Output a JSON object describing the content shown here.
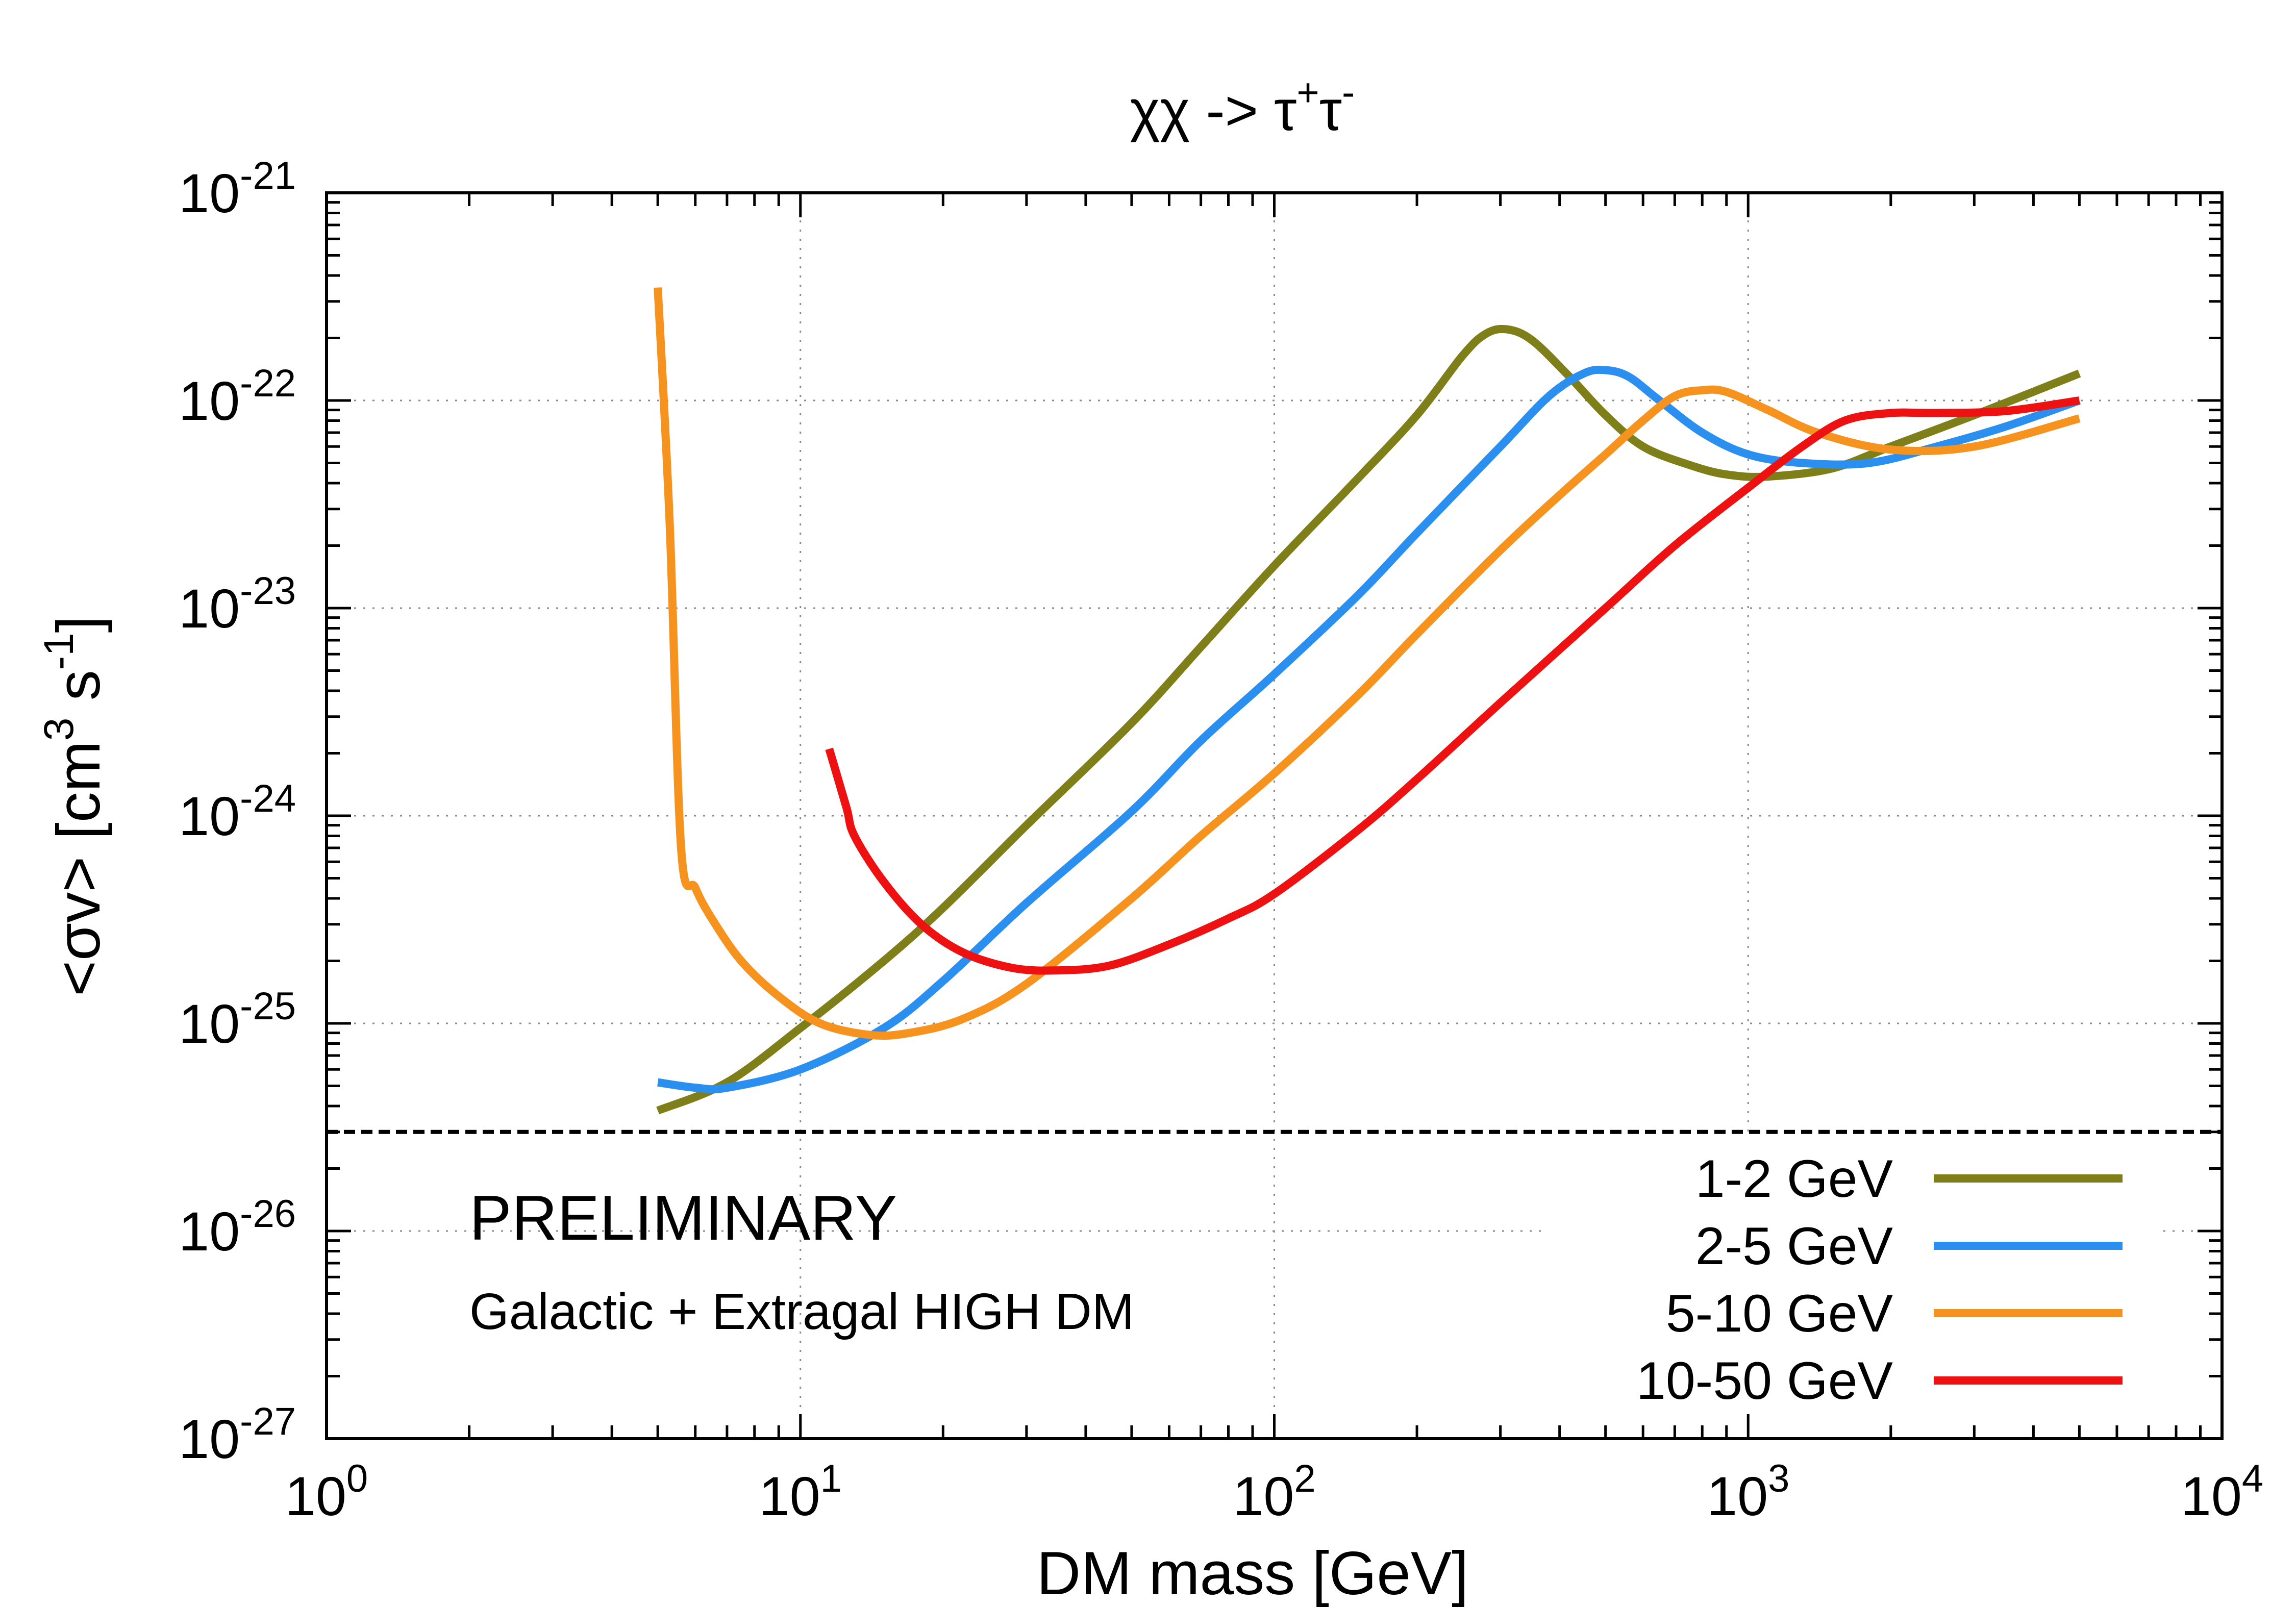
{
  "chart_data": {
    "type": "line",
    "title_parts": {
      "base": "χχ -> τ",
      "sup1": "+",
      "mid": "τ",
      "sup2": "-"
    },
    "xlabel": "DM mass [GeV]",
    "ylabel_parts": {
      "a": "<σv> [cm",
      "sup1": "3",
      "b": " s",
      "sup2": "-1",
      "c": "]"
    },
    "x_scale": "log",
    "y_scale": "log",
    "xlim": [
      1,
      10000
    ],
    "ylim": [
      1e-27,
      1e-21
    ],
    "x_ticks": [
      {
        "base": "10",
        "exp": "0",
        "value": 1
      },
      {
        "base": "10",
        "exp": "1",
        "value": 10
      },
      {
        "base": "10",
        "exp": "2",
        "value": 100
      },
      {
        "base": "10",
        "exp": "3",
        "value": 1000
      },
      {
        "base": "10",
        "exp": "4",
        "value": 10000
      }
    ],
    "y_ticks": [
      {
        "base": "10",
        "exp": "-27",
        "value": 1e-27
      },
      {
        "base": "10",
        "exp": "-26",
        "value": 1e-26
      },
      {
        "base": "10",
        "exp": "-25",
        "value": 1e-25
      },
      {
        "base": "10",
        "exp": "-24",
        "value": 1e-24
      },
      {
        "base": "10",
        "exp": "-23",
        "value": 1e-23
      },
      {
        "base": "10",
        "exp": "-22",
        "value": 1e-22
      },
      {
        "base": "10",
        "exp": "-21",
        "value": 1e-21
      }
    ],
    "grid": true,
    "legend_position": "bottom-right",
    "reference_line": {
      "y": 3e-26,
      "style": "dashed",
      "color": "#000000"
    },
    "annotations": [
      {
        "text": "PRELIMINARY",
        "color": "#ee1111"
      },
      {
        "text": "Galactic + Extragal HIGH DM",
        "color": "#000000"
      }
    ],
    "series": [
      {
        "name": "1-2 GeV",
        "color": "#7f7f1a",
        "points": [
          [
            5,
            3.8e-26
          ],
          [
            7,
            5.2e-26
          ],
          [
            10,
            9.5e-26
          ],
          [
            15,
            2e-25
          ],
          [
            20,
            3.6e-25
          ],
          [
            30,
            9e-25
          ],
          [
            50,
            2.8e-24
          ],
          [
            70,
            6.5e-24
          ],
          [
            100,
            1.6e-23
          ],
          [
            150,
            4.2e-23
          ],
          [
            200,
            8.5e-23
          ],
          [
            250,
            1.65e-22
          ],
          [
            280,
            2.1e-22
          ],
          [
            310,
            2.2e-22
          ],
          [
            350,
            1.95e-22
          ],
          [
            420,
            1.3e-22
          ],
          [
            500,
            8.5e-23
          ],
          [
            600,
            6e-23
          ],
          [
            750,
            4.9e-23
          ],
          [
            900,
            4.4e-23
          ],
          [
            1100,
            4.3e-23
          ],
          [
            1500,
            4.7e-23
          ],
          [
            2000,
            6e-23
          ],
          [
            3000,
            8.5e-23
          ],
          [
            5000,
            1.35e-22
          ]
        ]
      },
      {
        "name": "2-5 GeV",
        "color": "#2b8ff0",
        "points": [
          [
            5,
            5.2e-26
          ],
          [
            6,
            4.9e-26
          ],
          [
            7,
            4.9e-26
          ],
          [
            10,
            6e-26
          ],
          [
            15,
            9.5e-26
          ],
          [
            20,
            1.6e-25
          ],
          [
            30,
            3.8e-25
          ],
          [
            50,
            1.05e-24
          ],
          [
            70,
            2.3e-24
          ],
          [
            100,
            4.8e-24
          ],
          [
            150,
            1.15e-23
          ],
          [
            200,
            2.3e-23
          ],
          [
            300,
            6e-23
          ],
          [
            380,
            1.05e-22
          ],
          [
            450,
            1.35e-22
          ],
          [
            500,
            1.4e-22
          ],
          [
            560,
            1.3e-22
          ],
          [
            650,
            1e-22
          ],
          [
            800,
            7e-23
          ],
          [
            1000,
            5.5e-23
          ],
          [
            1300,
            5e-23
          ],
          [
            1800,
            5e-23
          ],
          [
            2500,
            6e-23
          ],
          [
            3500,
            7.5e-23
          ],
          [
            5000,
            1e-22
          ]
        ]
      },
      {
        "name": "5-10 GeV",
        "color": "#f6921e",
        "points": [
          [
            5,
            3.5e-22
          ],
          [
            5.3,
            2.5e-23
          ],
          [
            5.6,
            7e-25
          ],
          [
            6,
            4.5e-25
          ],
          [
            6.5,
            3.2e-25
          ],
          [
            7.5,
            2e-25
          ],
          [
            9,
            1.35e-25
          ],
          [
            11,
            1e-25
          ],
          [
            14,
            8.8e-26
          ],
          [
            17,
            9e-26
          ],
          [
            22,
            1.05e-25
          ],
          [
            30,
            1.55e-25
          ],
          [
            50,
            4e-25
          ],
          [
            70,
            8e-25
          ],
          [
            100,
            1.6e-24
          ],
          [
            150,
            3.8e-24
          ],
          [
            200,
            7.5e-24
          ],
          [
            300,
            1.9e-23
          ],
          [
            400,
            3.5e-23
          ],
          [
            500,
            5.5e-23
          ],
          [
            600,
            8e-23
          ],
          [
            700,
            1.05e-22
          ],
          [
            800,
            1.12e-22
          ],
          [
            900,
            1.1e-22
          ],
          [
            1100,
            9e-23
          ],
          [
            1400,
            7e-23
          ],
          [
            2000,
            5.8e-23
          ],
          [
            3000,
            6e-23
          ],
          [
            5000,
            8.2e-23
          ]
        ]
      },
      {
        "name": "10-50 GeV",
        "color": "#ee1111",
        "points": [
          [
            11.5,
            2.1e-24
          ],
          [
            12.5,
            1.1e-24
          ],
          [
            13,
            8e-25
          ],
          [
            15,
            4.8e-25
          ],
          [
            18,
            3e-25
          ],
          [
            22,
            2.2e-25
          ],
          [
            28,
            1.85e-25
          ],
          [
            35,
            1.8e-25
          ],
          [
            45,
            1.9e-25
          ],
          [
            60,
            2.4e-25
          ],
          [
            80,
            3.2e-25
          ],
          [
            100,
            4.2e-25
          ],
          [
            150,
            8.5e-25
          ],
          [
            200,
            1.5e-24
          ],
          [
            300,
            3.5e-24
          ],
          [
            500,
            1e-23
          ],
          [
            700,
            2e-23
          ],
          [
            1000,
            3.8e-23
          ],
          [
            1300,
            6e-23
          ],
          [
            1600,
            8e-23
          ],
          [
            2000,
            8.7e-23
          ],
          [
            2500,
            8.7e-23
          ],
          [
            3500,
            8.9e-23
          ],
          [
            5000,
            1e-22
          ]
        ]
      }
    ]
  }
}
